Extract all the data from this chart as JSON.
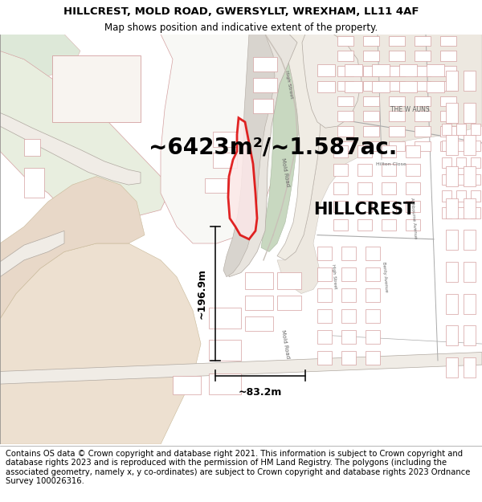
{
  "title_line1": "HILLCREST, MOLD ROAD, GWERSYLLT, WREXHAM, LL11 4AF",
  "title_line2": "Map shows position and indicative extent of the property.",
  "area_text": "~6423m²/~1.587ac.",
  "label_hillcrest": "HILLCREST",
  "dim_vertical": "~196.9m",
  "dim_horizontal": "~83.2m",
  "footer_text": "Contains OS data © Crown copyright and database right 2021. This information is subject to Crown copyright and database rights 2023 and is reproduced with the permission of HM Land Registry. The polygons (including the associated geometry, namely x, y co-ordinates) are subject to Crown copyright and database rights 2023 Ordnance Survey 100026316.",
  "map_bg": "#f5f2ee",
  "field_green": "#e8eedf",
  "field_green2": "#dde8d8",
  "sand_color": "#ede0d0",
  "road_fill": "#ffffff",
  "road_line": "#aaaaaa",
  "building_fill": "#ffffff",
  "building_edge": "#d4a0a0",
  "prop_fill": "#fce8e8",
  "prop_edge": "#dd0000",
  "dim_color": "#111111",
  "street_label_color": "#666666",
  "area_fontsize": 20,
  "dim_fontsize": 9,
  "label_fontsize": 15,
  "street_fontsize": 5,
  "title_fontsize": 9.5,
  "subtitle_fontsize": 8.5,
  "footer_fontsize": 7.2
}
